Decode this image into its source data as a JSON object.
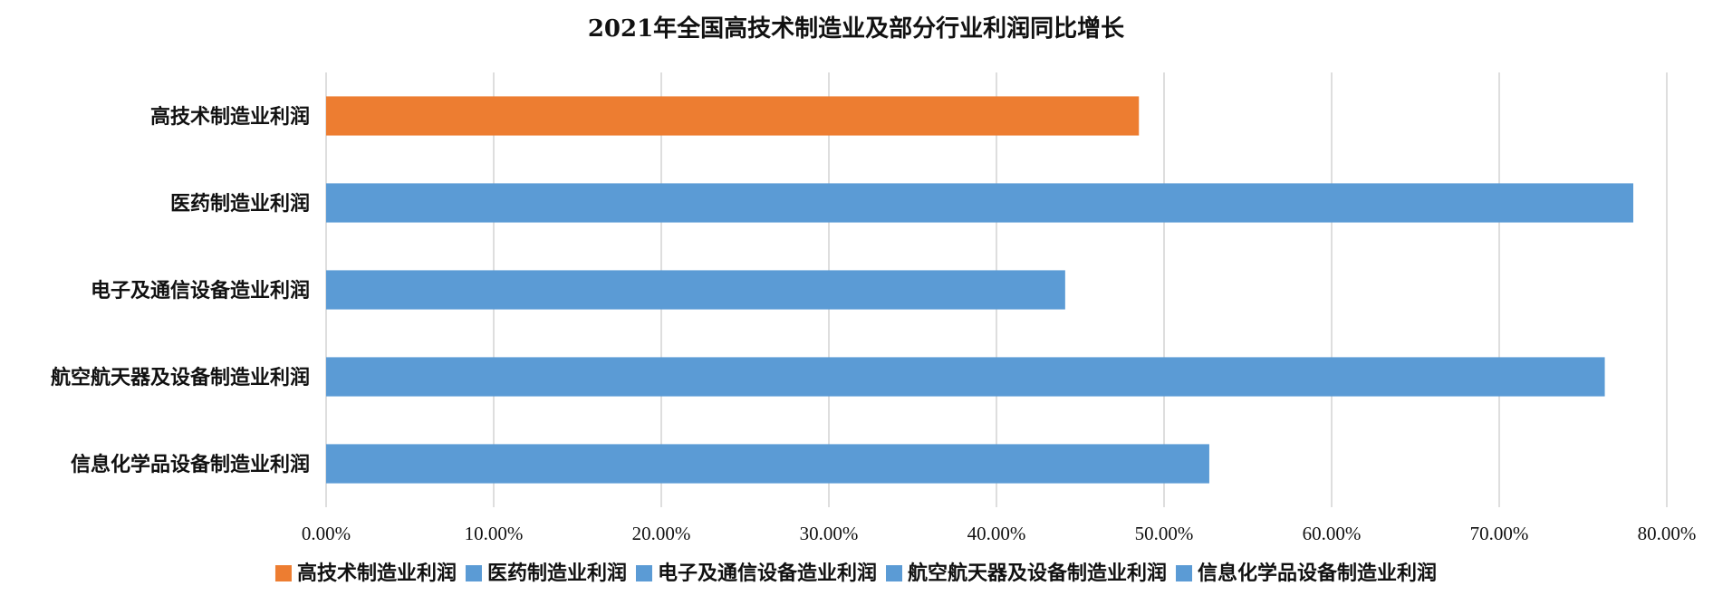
{
  "chart_data": {
    "type": "bar",
    "orientation": "horizontal",
    "title": "2021年全国高技术制造业及部分行业利润同比增长",
    "categories": [
      "高技术制造业利润",
      "医药制造业利润",
      "电子及通信设备造业利润",
      "航空航天器及设备制造业利润",
      "信息化学品设备制造业利润"
    ],
    "values": [
      48.5,
      78.0,
      44.1,
      76.3,
      52.7
    ],
    "value_unit": "%",
    "xlim": [
      0,
      80
    ],
    "x_ticks": [
      "0.00%",
      "10.00%",
      "20.00%",
      "30.00%",
      "40.00%",
      "50.00%",
      "60.00%",
      "70.00%",
      "80.00%"
    ],
    "grid": true,
    "legend_position": "bottom",
    "legend": [
      "高技术制造业利润",
      "医药制造业利润",
      "电子及通信设备造业利润",
      "航空航天器及设备制造业利润",
      "信息化学品设备制造业利润"
    ],
    "colors": [
      "#ED7D31",
      "#5B9BD5",
      "#5B9BD5",
      "#5B9BD5",
      "#5B9BD5"
    ]
  }
}
